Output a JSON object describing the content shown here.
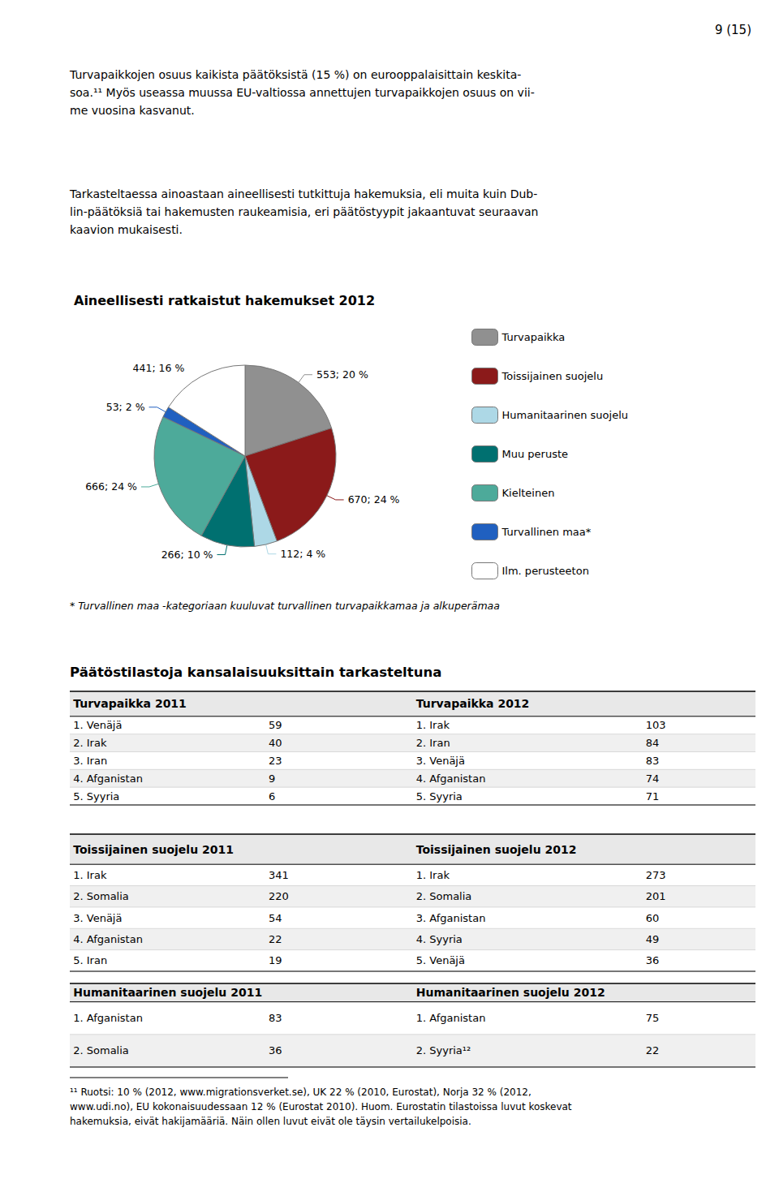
{
  "chart_data": {
    "type": "pie",
    "title": "Aineellisesti ratkaistut hakemukset 2012",
    "categories": [
      "Turvapaikka",
      "Toissijainen suojelu",
      "Humanitaarinen suojelu",
      "Muu peruste",
      "Kielteinen",
      "Turvallinen maa*",
      "Ilm. perusteeton"
    ],
    "values": [
      553,
      670,
      112,
      266,
      666,
      53,
      441
    ],
    "value_labels": [
      "553; 20 %",
      "670; 24 %",
      "112; 4 %",
      "266; 10 %",
      "666; 24 %",
      "53; 2 %",
      "441; 16 %"
    ],
    "colors": [
      "#909090",
      "#8B1A1A",
      "#ADD8E6",
      "#007070",
      "#4DAA9A",
      "#2060C0",
      "#FFFFFF"
    ],
    "data_labels": true,
    "legend": "right",
    "annotations": {
      "page_number": "9 (15)",
      "text1": "Turvapaikkojen osuus kaikista päätöksistä (15 %) on eurooppalaisittain keskita-\nsoa.¹¹ Myös useassa muussa EU-valtiossa annettujen turvapaikkojen osuus on vii-\nme vuosina kasvanut.",
      "text2": "Tarkasteltaessa ainoastaan aineellisesti tutkittuja hakemuksia, eli muita kuin Dub-\nlin-päätöksiä tai hakemusten raukeamisia, eri päätöstyypit jakaantuvat seuraavan\nkaavion mukaisesti.",
      "note": "* Turvallinen maa -kategoriaan kuuluvat turvallinen turvapaikkamaa ja alkuperämaa",
      "section_title": "Päätöstilastoja kansalaisuuksittain tarkasteltuna",
      "footnote": "¹¹ Ruotsi: 10 % (2012, www.migrationsverket.se), UK 22 % (2010, Eurostat), Norja 32 % (2012,\nwww.udi.no), EU kokonaisuudessaan 12 % (Eurostat 2010). Huom. Eurostatin tilastoissa luvut koskevat\nhakemuksia, eivät hakijamääriä. Näin ollen luvut eivät ole täysin vertailukelpoisia."
    },
    "tables": [
      {
        "headers": [
          "Turvapaikka 2011",
          "Turvapaikka 2012"
        ],
        "columns": [
          [
            {
              "label": "1. Venäjä",
              "value": 59
            },
            {
              "label": "2. Irak",
              "value": 40
            },
            {
              "label": "3. Iran",
              "value": 23
            },
            {
              "label": "4. Afganistan",
              "value": 9
            },
            {
              "label": "5. Syyria",
              "value": 6
            }
          ],
          [
            {
              "label": "1. Irak",
              "value": 103
            },
            {
              "label": "2. Iran",
              "value": 84
            },
            {
              "label": "3. Venäjä",
              "value": 83
            },
            {
              "label": "4. Afganistan",
              "value": 74
            },
            {
              "label": "5. Syyria",
              "value": 71
            }
          ]
        ]
      },
      {
        "headers": [
          "Toissijainen suojelu 2011",
          "Toissijainen suojelu 2012"
        ],
        "columns": [
          [
            {
              "label": "1. Irak",
              "value": 341
            },
            {
              "label": "2. Somalia",
              "value": 220
            },
            {
              "label": "3. Venäjä",
              "value": 54
            },
            {
              "label": "4. Afganistan",
              "value": 22
            },
            {
              "label": "5. Iran",
              "value": 19
            }
          ],
          [
            {
              "label": "1. Irak",
              "value": 273
            },
            {
              "label": "2. Somalia",
              "value": 201
            },
            {
              "label": "3. Afganistan",
              "value": 60
            },
            {
              "label": "4. Syyria",
              "value": 49
            },
            {
              "label": "5. Venäjä",
              "value": 36
            }
          ]
        ]
      },
      {
        "headers": [
          "Humanitaarinen suojelu 2011",
          "Humanitaarinen suojelu 2012"
        ],
        "columns": [
          [
            {
              "label": "1. Afganistan",
              "value": 83
            },
            {
              "label": "2. Somalia",
              "value": 36
            }
          ],
          [
            {
              "label": "1. Afganistan",
              "value": 75
            },
            {
              "label": "2. Syyria¹²",
              "value": 22
            }
          ]
        ]
      }
    ]
  }
}
